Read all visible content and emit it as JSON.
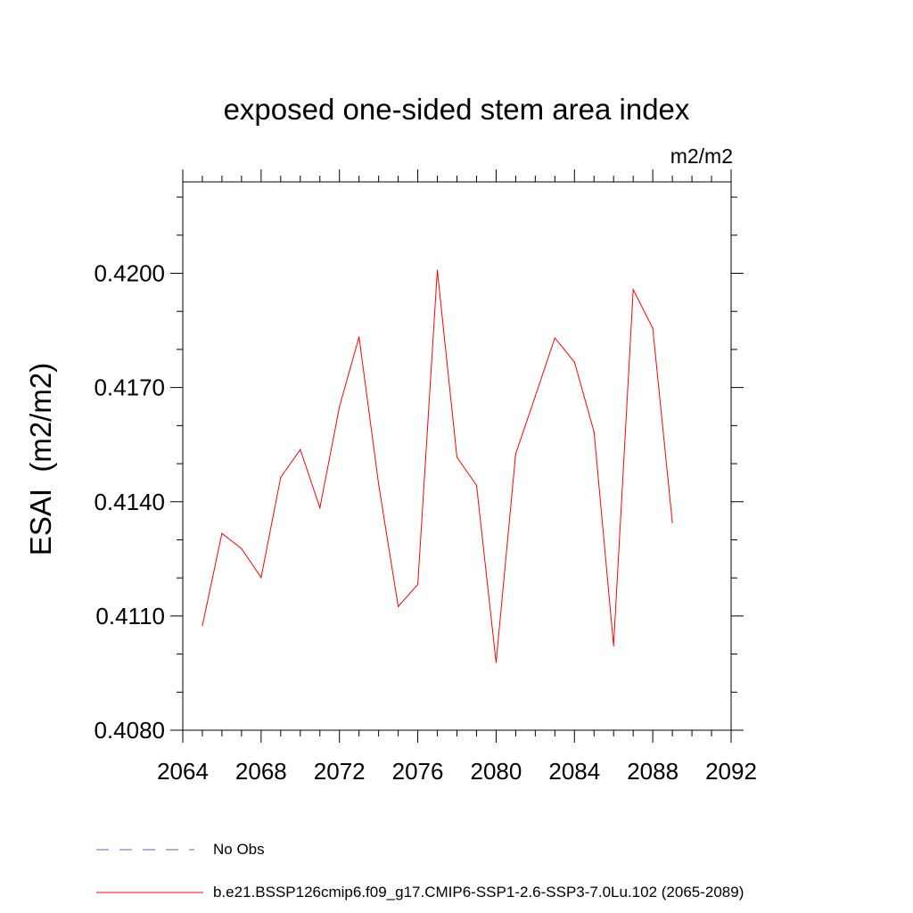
{
  "chart_data": {
    "type": "line",
    "title": "exposed one-sided stem area index",
    "units": "m2/m2",
    "ylabel": "ESAI  (m2/m2)",
    "xlabel": "",
    "xlim": [
      2064,
      2092
    ],
    "ylim": [
      0.408,
      0.4224
    ],
    "x_ticks": [
      "2064",
      "2068",
      "2072",
      "2076",
      "2080",
      "2084",
      "2088",
      "2092"
    ],
    "y_ticks": [
      "0.4080",
      "0.4110",
      "0.4140",
      "0.4170",
      "0.4200"
    ],
    "grid": false,
    "legend_position": "bottom",
    "series": [
      {
        "name": "b.e21.BSSP126cmip6.f09_g17.CMIP6-SSP1-2.6-SSP3-7.0Lu.102 (2065-2089)",
        "color": "#ff0000",
        "x": [
          2065,
          2066,
          2067,
          2068,
          2069,
          2070,
          2071,
          2072,
          2073,
          2074,
          2075,
          2076,
          2077,
          2078,
          2079,
          2080,
          2081,
          2082,
          2083,
          2084,
          2085,
          2086,
          2087,
          2088,
          2089
        ],
        "values": [
          0.41075,
          0.41317,
          0.41277,
          0.41201,
          0.41464,
          0.41537,
          0.41384,
          0.41649,
          0.41833,
          0.41447,
          0.41125,
          0.41183,
          0.42008,
          0.41517,
          0.41443,
          0.40978,
          0.41526,
          0.41677,
          0.4183,
          0.41767,
          0.41583,
          0.41022,
          0.41957,
          0.41856,
          0.41345
        ]
      }
    ],
    "legend": [
      {
        "label": "No Obs",
        "style": "dashed",
        "color": "#6a5acd"
      },
      {
        "label": "b.e21.BSSP126cmip6.f09_g17.CMIP6-SSP1-2.6-SSP3-7.0Lu.102 (2065-2089)",
        "style": "solid",
        "color": "#ff0000"
      }
    ]
  }
}
